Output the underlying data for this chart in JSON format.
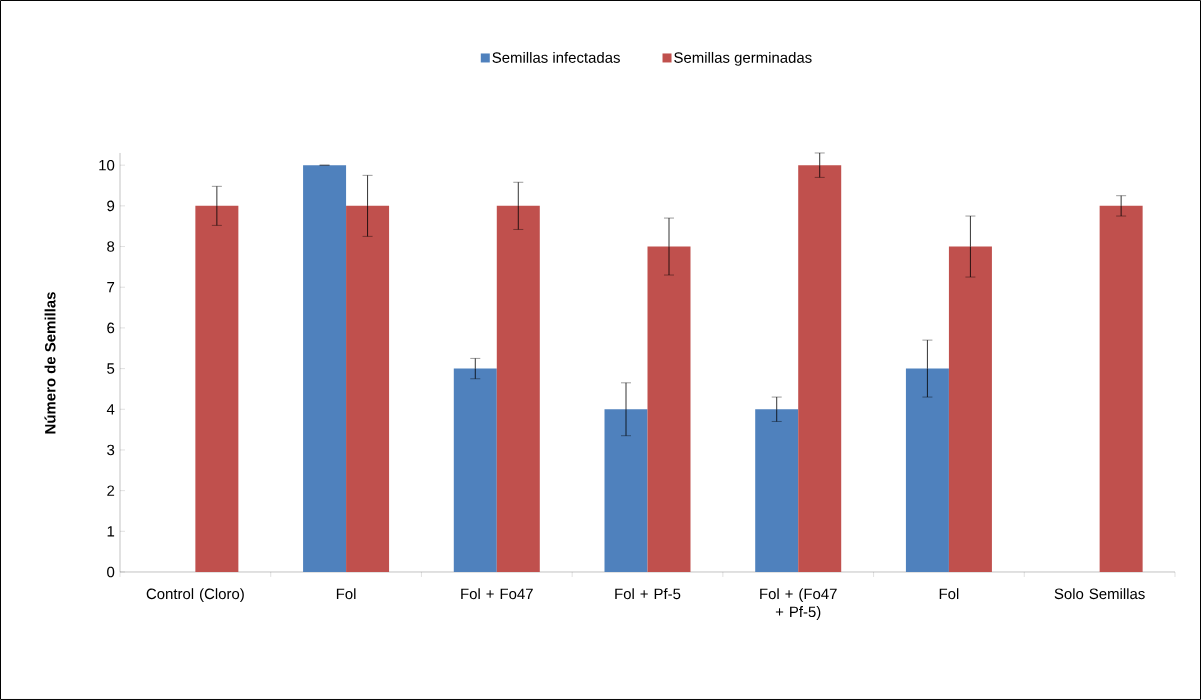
{
  "chart_data": {
    "type": "bar",
    "ylabel": "Número de Semillas",
    "categories": [
      "Control (Cloro)",
      "Fol",
      "Fol + Fo47",
      "Fol + Pf-5",
      "Fol + (Fo47 + Pf-5)",
      "Fol",
      "Solo Semillas"
    ],
    "series": [
      {
        "name": "Semillas infectadas",
        "color": "#4f81bd",
        "values": [
          0,
          10,
          5,
          4,
          4,
          5,
          0
        ],
        "errors": [
          null,
          0,
          0.25,
          0.65,
          0.3,
          0.7,
          null
        ]
      },
      {
        "name": "Semillas germinadas",
        "color": "#c0504d",
        "values": [
          9,
          9,
          9,
          8,
          10,
          8,
          9
        ],
        "errors": [
          0.48,
          0.75,
          0.58,
          0.7,
          0.3,
          0.75,
          0.25
        ]
      }
    ],
    "ylim": [
      0,
      10.3
    ],
    "yticks": [
      0,
      1,
      2,
      3,
      4,
      5,
      6,
      7,
      8,
      9,
      10
    ],
    "legend": "top",
    "grid": false
  }
}
